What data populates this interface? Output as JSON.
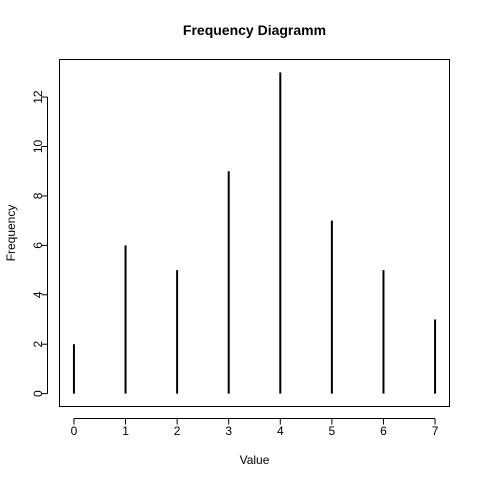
{
  "chart_data": {
    "type": "bar",
    "style": "vertical-lines",
    "title": "Frequency Diagramm",
    "xlabel": "Value",
    "ylabel": "Frequency",
    "x": [
      0,
      1,
      2,
      3,
      4,
      5,
      6,
      7
    ],
    "values": [
      2,
      6,
      5,
      9,
      13,
      7,
      5,
      3
    ],
    "xlim": [
      -0.28,
      7.28
    ],
    "ylim": [
      -0.52,
      13.52
    ],
    "xticks": [
      0,
      1,
      2,
      3,
      4,
      5,
      6,
      7
    ],
    "yticks": [
      0,
      2,
      4,
      6,
      8,
      10,
      12
    ],
    "grid": false,
    "legend": "none",
    "colors": {
      "lines": "#000000",
      "background": "#ffffff"
    }
  }
}
